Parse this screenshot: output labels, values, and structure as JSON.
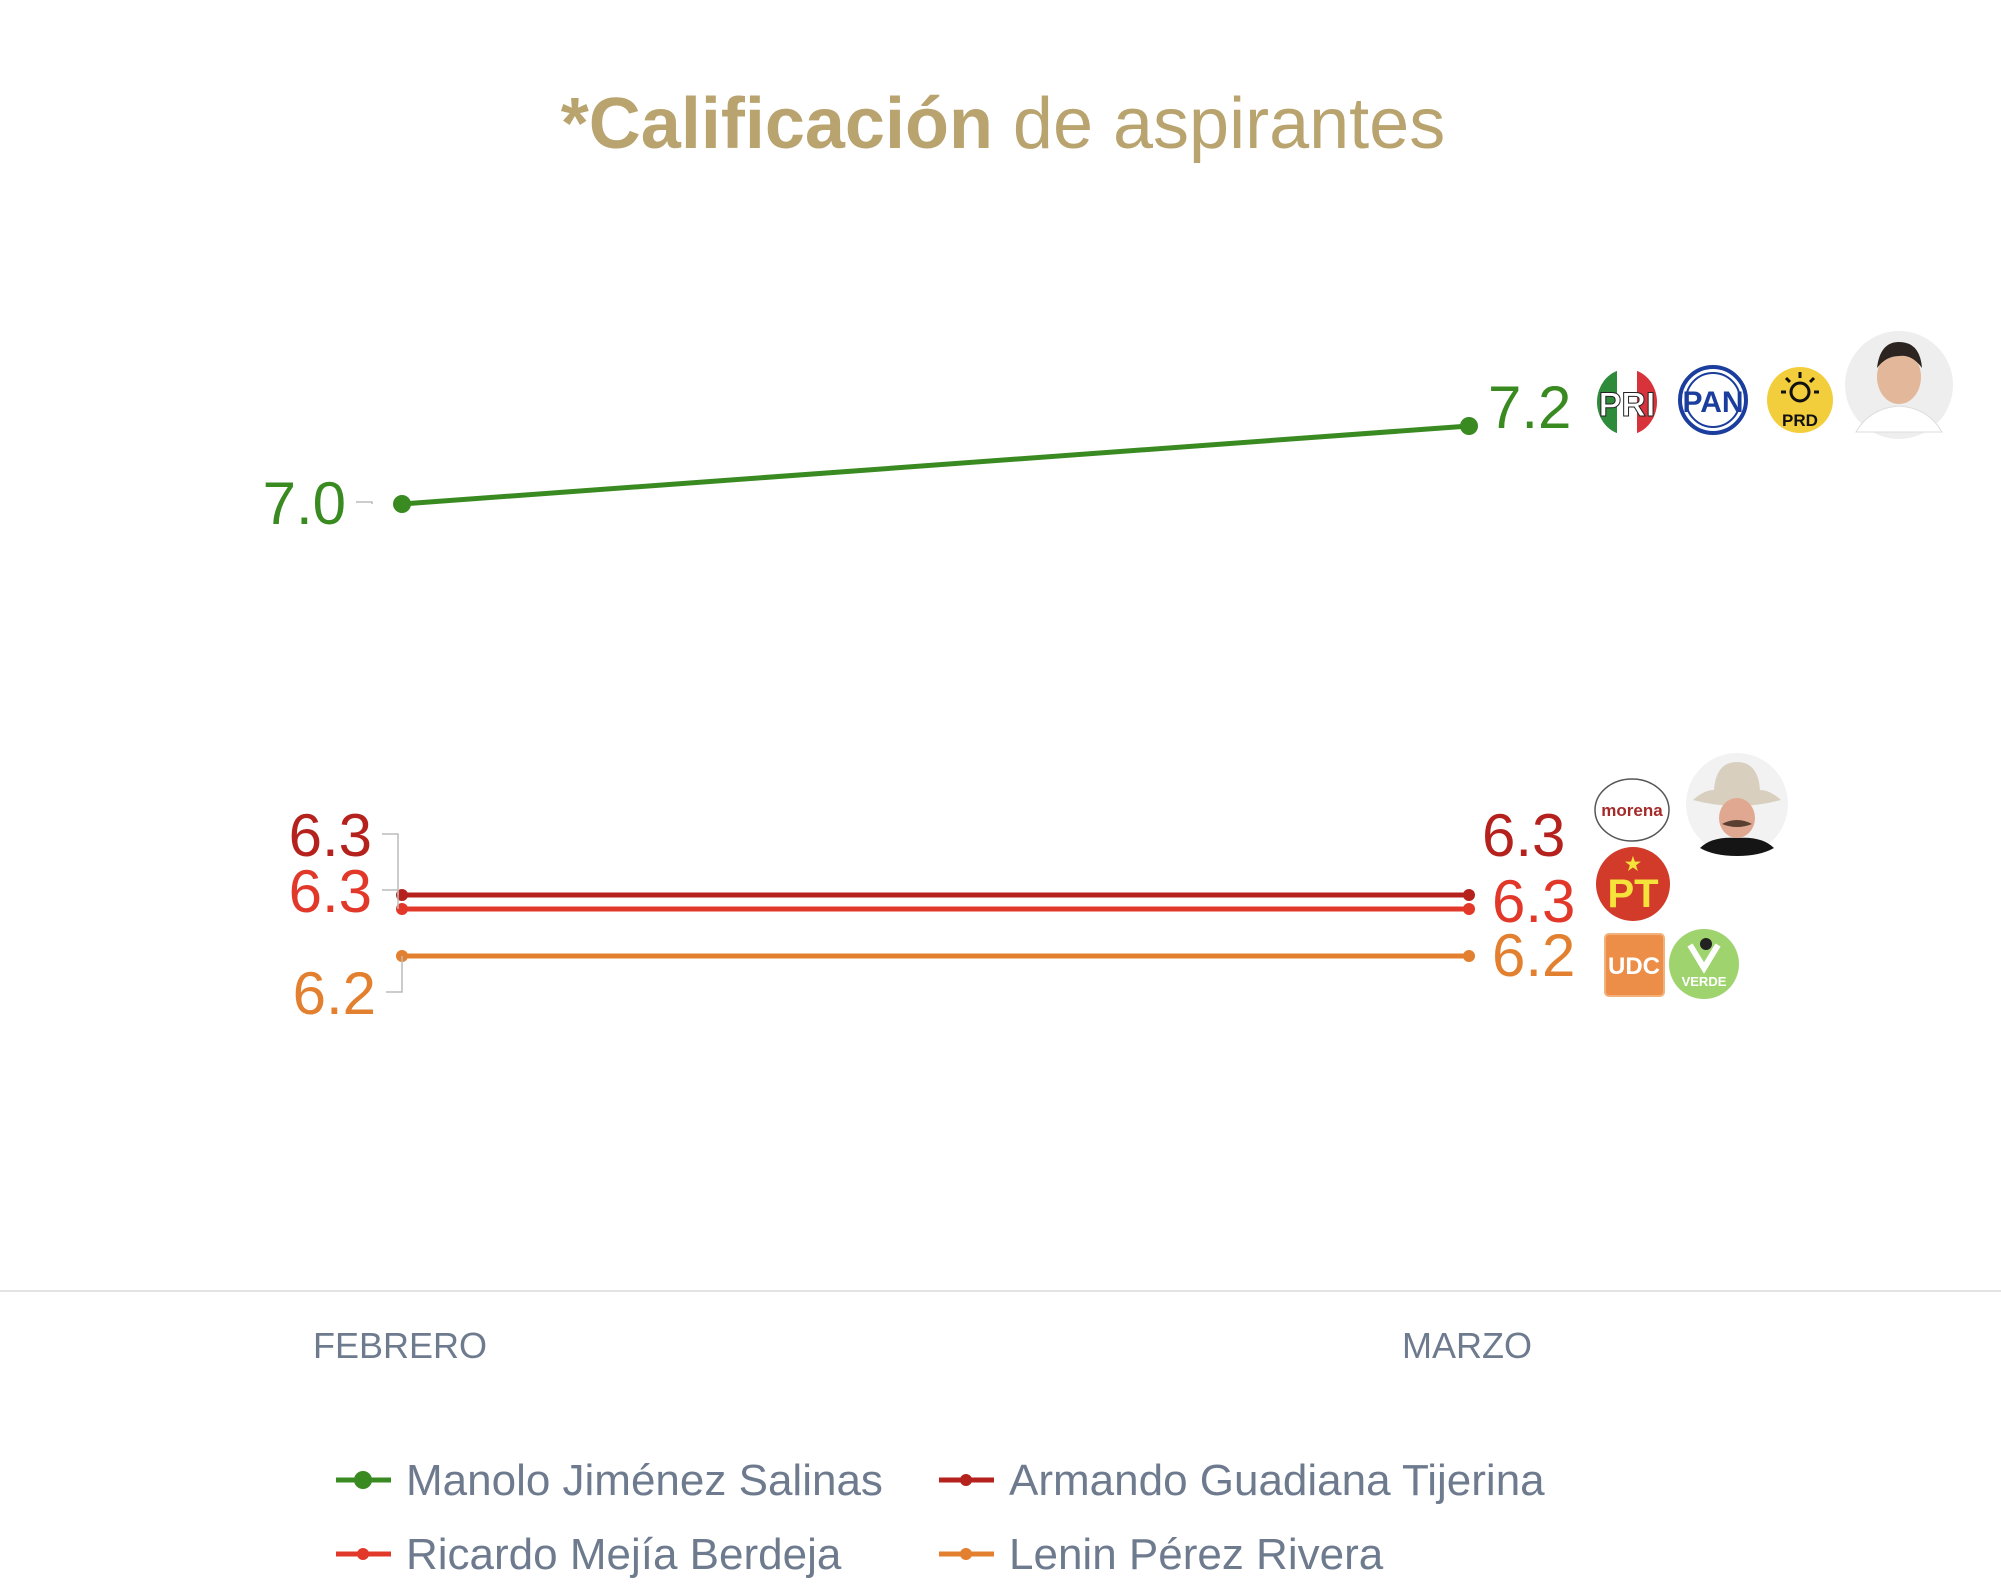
{
  "chart_data": {
    "type": "line",
    "title_bold": "*Calificación",
    "title_rest": " de aspirantes",
    "categories": [
      "FEBRERO",
      "MARZO"
    ],
    "ylim": [
      6.0,
      7.3
    ],
    "grid": false,
    "legend_position": "bottom",
    "series": [
      {
        "name": "Manolo Jiménez Salinas",
        "color": "#3a8a22",
        "values": [
          7.0,
          7.2
        ],
        "labels": [
          "7.0",
          "7.2"
        ],
        "parties": [
          "PRI",
          "PAN",
          "PRD"
        ]
      },
      {
        "name": "Armando Guadiana Tijerina",
        "color": "#b5221d",
        "values": [
          6.3,
          6.3
        ],
        "labels": [
          "6.3",
          "6.3"
        ],
        "parties": [
          "morena"
        ]
      },
      {
        "name": "Ricardo Mejía Berdeja",
        "color": "#e2382a",
        "values": [
          6.3,
          6.3
        ],
        "labels": [
          "6.3",
          "6.3"
        ],
        "parties": [
          "PT"
        ]
      },
      {
        "name": "Lenin Pérez Rivera",
        "color": "#e2802f",
        "values": [
          6.2,
          6.2
        ],
        "labels": [
          "6.2",
          "6.2"
        ],
        "parties": [
          "UDC",
          "VERDE"
        ]
      }
    ]
  }
}
